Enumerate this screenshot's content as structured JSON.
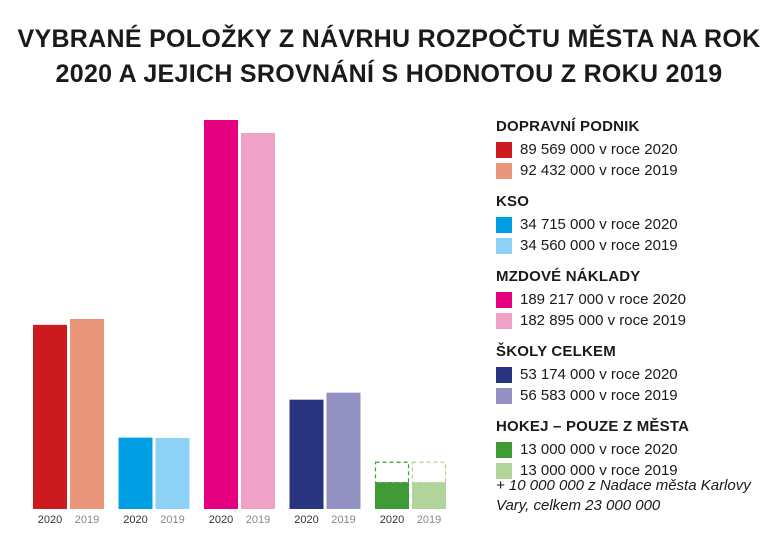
{
  "title_line1": "VYBRANÉ POLOŽKY Z NÁVRHU ROZPOČTU MĚSTA NA ROK",
  "title_line2": "2020 A JEJICH SROVNÁNÍ S HODNOTOU Z ROKU 2019",
  "chart_data": {
    "type": "bar",
    "title": "VYBRANÉ POLOŽKY Z NÁVRHU ROZPOČTU MĚSTA NA ROK 2020 A JEJICH SROVNÁNÍ S HODNOTOU Z ROKU 2019",
    "categories": [
      "DOPRAVNÍ PODNIK",
      "KSO",
      "MZDOVÉ NÁKLADY",
      "ŠKOLY CELKEM",
      "HOKEJ – POUZE Z MĚSTA"
    ],
    "x_tick_labels": [
      "2020",
      "2019"
    ],
    "groups": [
      {
        "name": "DOPRAVNÍ PODNIK",
        "bars": [
          {
            "year": "2020",
            "value": 89569000,
            "color": "#cc1b1f",
            "label": "89 569 000 v roce 2020"
          },
          {
            "year": "2019",
            "value": 92432000,
            "color": "#e9957a",
            "label": "92 432 000 v roce 2019"
          }
        ]
      },
      {
        "name": "KSO",
        "bars": [
          {
            "year": "2020",
            "value": 34715000,
            "color": "#009fe3",
            "label": "34 715 000 v roce 2020"
          },
          {
            "year": "2019",
            "value": 34560000,
            "color": "#8ed1f7",
            "label": "34 560 000 v roce 2019"
          }
        ]
      },
      {
        "name": "MZDOVÉ NÁKLADY",
        "bars": [
          {
            "year": "2020",
            "value": 189217000,
            "color": "#e4007e",
            "label": "189 217 000 v roce 2020"
          },
          {
            "year": "2019",
            "value": 182895000,
            "color": "#f0a1c8",
            "label": "182 895 000 v roce 2019"
          }
        ]
      },
      {
        "name": "ŠKOLY CELKEM",
        "bars": [
          {
            "year": "2020",
            "value": 53174000,
            "color": "#283480",
            "label": "53 174 000 v roce 2020"
          },
          {
            "year": "2019",
            "value": 56583000,
            "color": "#9390c2",
            "label": "56 583 000 v roce 2019"
          }
        ]
      },
      {
        "name": "HOKEJ – POUZE Z MĚSTA",
        "bars": [
          {
            "year": "2020",
            "value": 13000000,
            "extra": 10000000,
            "color": "#3f9b35",
            "label": "13 000 000 v roce 2020"
          },
          {
            "year": "2019",
            "value": 13000000,
            "extra": 10000000,
            "color": "#b1d49a",
            "label": "13 000  000 v roce 2019"
          }
        ]
      }
    ],
    "ylim": [
      0,
      189217000
    ],
    "grid": false,
    "legend_position": "right",
    "note": "+ 10 000 000 z Nadace města Karlovy Vary, celkem 23 000 000"
  }
}
